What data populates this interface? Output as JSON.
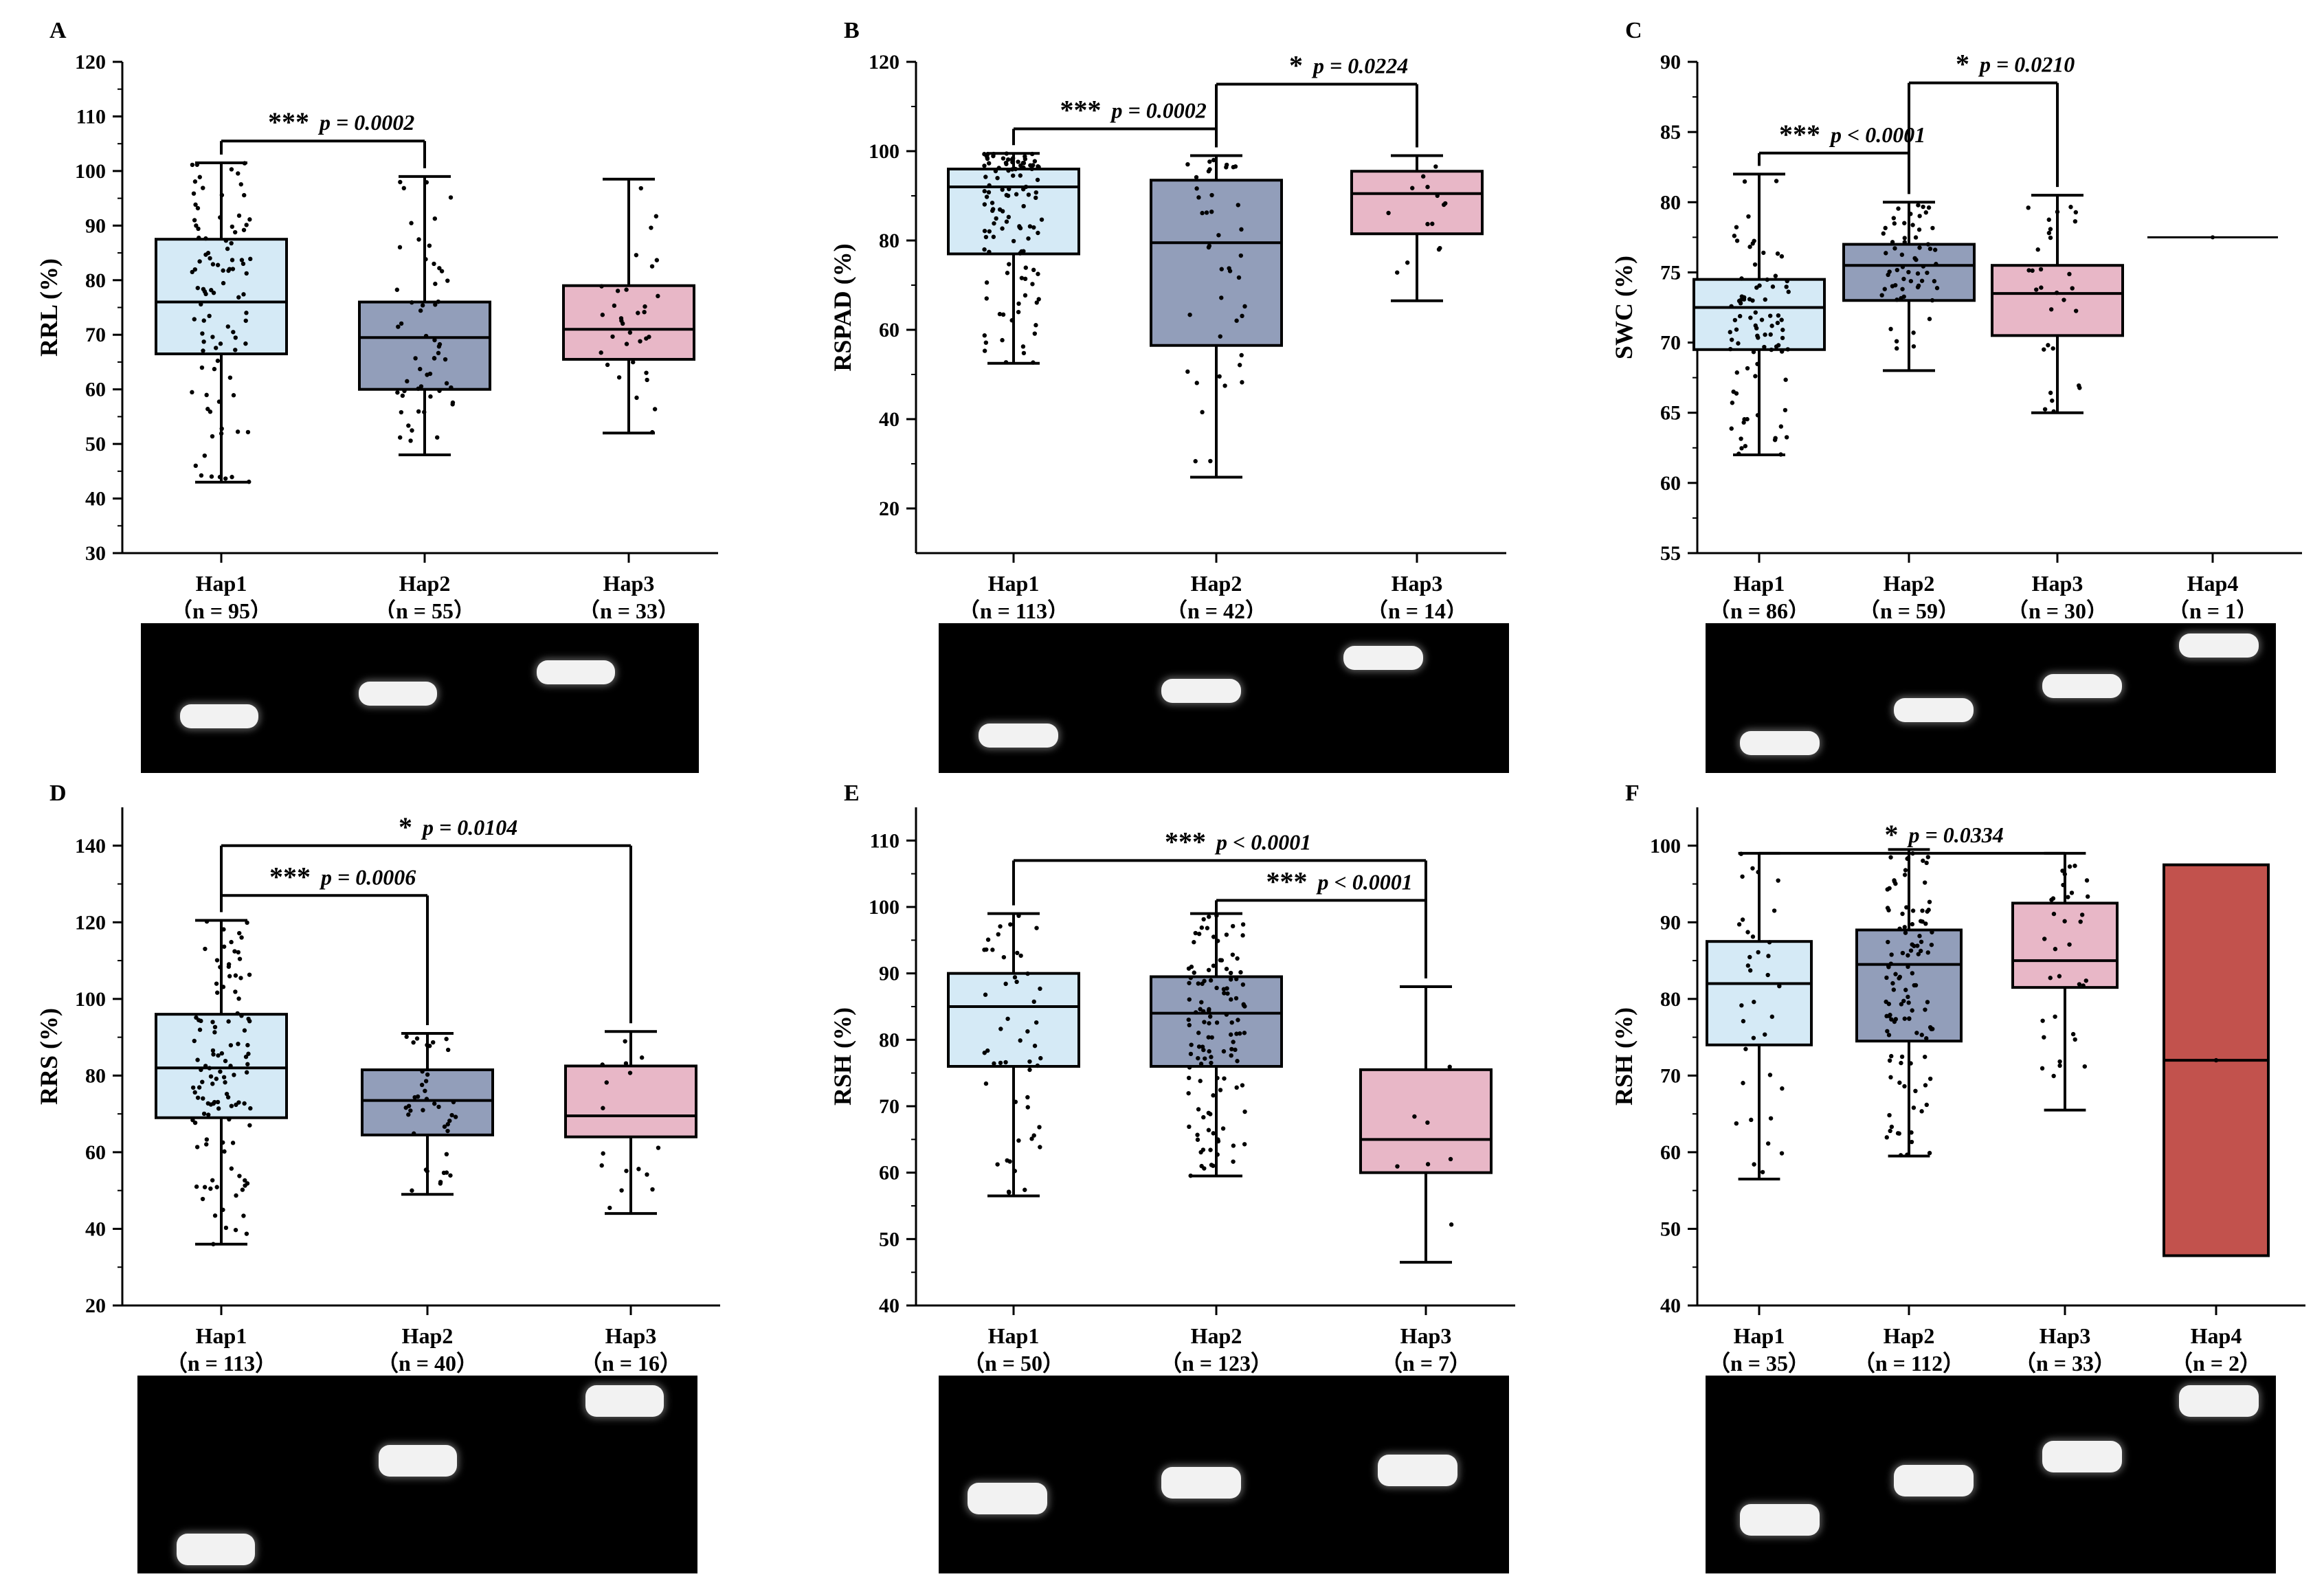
{
  "colors": {
    "hap1": "#d5eaf6",
    "hap2": "#929eba",
    "hap3": "#e8b7c7",
    "hap4": "#c2524d",
    "axis": "#000000",
    "gel_bg": "#000000",
    "band": "#f2f2f2"
  },
  "chart_data": [
    {
      "panel": "A",
      "type": "box",
      "ylabel": "RRL (%)",
      "ylim": [
        30,
        120
      ],
      "yticks": [
        30,
        40,
        50,
        60,
        70,
        80,
        90,
        100,
        110,
        120
      ],
      "categories": [
        "Hap1",
        "Hap2",
        "Hap3"
      ],
      "n_labels": [
        "（n = 95）",
        "（n = 55）",
        "（n = 33）"
      ],
      "boxes": [
        {
          "min": 43,
          "q1": 66.5,
          "median": 76,
          "q3": 87.5,
          "max": 101.5,
          "color": "hap1",
          "n": 95
        },
        {
          "min": 48,
          "q1": 60,
          "median": 69.5,
          "q3": 76,
          "max": 99,
          "color": "hap2",
          "n": 55
        },
        {
          "min": 52,
          "q1": 65.5,
          "median": 71,
          "q3": 79,
          "max": 98.5,
          "color": "hap3",
          "n": 33
        }
      ],
      "significance": [
        {
          "from": 0,
          "to": 1,
          "y": 105.5,
          "stars": "***",
          "p": "p = 0.0002"
        }
      ]
    },
    {
      "panel": "B",
      "type": "box",
      "ylabel": "RSPAD (%)",
      "ylim": [
        10,
        120
      ],
      "yticks": [
        20,
        40,
        60,
        80,
        100,
        120
      ],
      "categories": [
        "Hap1",
        "Hap2",
        "Hap3"
      ],
      "n_labels": [
        "（n = 113）",
        "（n = 42）",
        "（n = 14）"
      ],
      "boxes": [
        {
          "min": 52.5,
          "q1": 77,
          "median": 92,
          "q3": 96,
          "max": 99.5,
          "color": "hap1",
          "n": 113
        },
        {
          "min": 27,
          "q1": 56.5,
          "median": 79.5,
          "q3": 93.5,
          "max": 99,
          "color": "hap2",
          "n": 42
        },
        {
          "min": 66.5,
          "q1": 81.5,
          "median": 90.5,
          "q3": 95.5,
          "max": 99,
          "color": "hap3",
          "n": 14
        }
      ],
      "significance": [
        {
          "from": 0,
          "to": 1,
          "y": 105,
          "stars": "***",
          "p": "p = 0.0002"
        },
        {
          "from": 1,
          "to": 2,
          "y": 115,
          "stars": "*",
          "p": "p = 0.0224"
        }
      ]
    },
    {
      "panel": "C",
      "type": "box",
      "ylabel": "SWC (%)",
      "ylim": [
        55,
        90
      ],
      "yticks": [
        55,
        60,
        65,
        70,
        75,
        80,
        85,
        90
      ],
      "categories": [
        "Hap1",
        "Hap2",
        "Hap3",
        "Hap4"
      ],
      "n_labels": [
        "（n = 86）",
        "（n = 59）",
        "（n = 30）",
        "（n = 1）"
      ],
      "boxes": [
        {
          "min": 62,
          "q1": 69.5,
          "median": 72.5,
          "q3": 74.5,
          "max": 82,
          "color": "hap1",
          "n": 86
        },
        {
          "min": 68,
          "q1": 73,
          "median": 75.5,
          "q3": 77,
          "max": 80,
          "color": "hap2",
          "n": 59
        },
        {
          "min": 65,
          "q1": 70.5,
          "median": 73.5,
          "q3": 75.5,
          "max": 80.5,
          "color": "hap3",
          "n": 30
        },
        {
          "min": 77.5,
          "q1": 77.5,
          "median": 77.5,
          "q3": 77.5,
          "max": 77.5,
          "color": "hap4",
          "n": 1
        }
      ],
      "significance": [
        {
          "from": 0,
          "to": 1,
          "y": 83.5,
          "stars": "***",
          "p": "p < 0.0001"
        },
        {
          "from": 1,
          "to": 2,
          "y": 88.5,
          "stars": "*",
          "p": "p = 0.0210"
        }
      ]
    },
    {
      "panel": "D",
      "type": "box",
      "ylabel": "RRS (%)",
      "ylim": [
        20,
        150
      ],
      "yticks": [
        20,
        40,
        60,
        80,
        100,
        120,
        140
      ],
      "categories": [
        "Hap1",
        "Hap2",
        "Hap3"
      ],
      "n_labels": [
        "（n = 113）",
        "（n = 40）",
        "（n = 16）"
      ],
      "boxes": [
        {
          "min": 36,
          "q1": 69,
          "median": 82,
          "q3": 96,
          "max": 120.5,
          "color": "hap1",
          "n": 113
        },
        {
          "min": 49,
          "q1": 64.5,
          "median": 73.5,
          "q3": 81.5,
          "max": 91,
          "color": "hap2",
          "n": 40
        },
        {
          "min": 44,
          "q1": 64,
          "median": 69.5,
          "q3": 82.5,
          "max": 91.5,
          "color": "hap3",
          "n": 16
        }
      ],
      "significance": [
        {
          "from": 0,
          "to": 1,
          "y": 127,
          "stars": "***",
          "p": "p = 0.0006"
        },
        {
          "from": 0,
          "to": 2,
          "y": 140,
          "stars": "*",
          "p": "p = 0.0104"
        }
      ]
    },
    {
      "panel": "E",
      "type": "box",
      "ylabel": "RSH (%)",
      "ylim": [
        40,
        115
      ],
      "yticks": [
        40,
        50,
        60,
        70,
        80,
        90,
        100,
        110
      ],
      "categories": [
        "Hap1",
        "Hap2",
        "Hap3"
      ],
      "n_labels": [
        "（n = 50）",
        "（n = 123）",
        "（n = 7）"
      ],
      "boxes": [
        {
          "min": 56.5,
          "q1": 76,
          "median": 85,
          "q3": 90,
          "max": 99,
          "color": "hap1",
          "n": 50
        },
        {
          "min": 59.5,
          "q1": 76,
          "median": 84,
          "q3": 89.5,
          "max": 99,
          "color": "hap2",
          "n": 123
        },
        {
          "min": 46.5,
          "q1": 60,
          "median": 65,
          "q3": 75.5,
          "max": 88,
          "color": "hap3",
          "n": 7
        }
      ],
      "significance": [
        {
          "from": 0,
          "to": 2,
          "y": 107,
          "stars": "***",
          "p": "p < 0.0001"
        },
        {
          "from": 1,
          "to": 2,
          "y": 101,
          "stars": "***",
          "p": "p < 0.0001"
        }
      ]
    },
    {
      "panel": "F",
      "type": "box",
      "ylabel": "RSH (%)",
      "ylim": [
        40,
        105
      ],
      "yticks": [
        40,
        50,
        60,
        70,
        80,
        90,
        100
      ],
      "categories": [
        "Hap1",
        "Hap2",
        "Hap3",
        "Hap4"
      ],
      "n_labels": [
        "（n = 35）",
        "（n = 112）",
        "（n = 33）",
        "（n = 2）"
      ],
      "boxes": [
        {
          "min": 56.5,
          "q1": 74,
          "median": 82,
          "q3": 87.5,
          "max": 99,
          "color": "hap1",
          "n": 35
        },
        {
          "min": 59.5,
          "q1": 74.5,
          "median": 84.5,
          "q3": 89,
          "max": 99.5,
          "color": "hap2",
          "n": 112
        },
        {
          "min": 65.5,
          "q1": 81.5,
          "median": 85,
          "q3": 92.5,
          "max": 99,
          "color": "hap3",
          "n": 33
        },
        {
          "min": 46.5,
          "q1": 46.5,
          "median": 72,
          "q3": 97.5,
          "max": 97.5,
          "color": "hap4",
          "n": 2
        }
      ],
      "significance": [
        {
          "from": 0,
          "to": 2,
          "y": 99,
          "stars": "*",
          "p": "p = 0.0334"
        }
      ]
    }
  ],
  "gels": [
    {
      "panel": "A",
      "bands": [
        [
          0.14,
          0.62
        ],
        [
          0.46,
          0.47
        ],
        [
          0.78,
          0.33
        ]
      ]
    },
    {
      "panel": "B",
      "bands": [
        [
          0.14,
          0.75
        ],
        [
          0.46,
          0.45
        ],
        [
          0.78,
          0.23
        ]
      ]
    },
    {
      "panel": "C",
      "bands": [
        [
          0.13,
          0.8
        ],
        [
          0.4,
          0.58
        ],
        [
          0.66,
          0.42
        ],
        [
          0.9,
          0.15
        ]
      ]
    },
    {
      "panel": "D",
      "bands": [
        [
          0.14,
          0.88
        ],
        [
          0.5,
          0.43
        ],
        [
          0.87,
          0.13
        ]
      ]
    },
    {
      "panel": "E",
      "bands": [
        [
          0.12,
          0.62
        ],
        [
          0.46,
          0.54
        ],
        [
          0.84,
          0.48
        ]
      ]
    },
    {
      "panel": "F",
      "bands": [
        [
          0.13,
          0.73
        ],
        [
          0.4,
          0.53
        ],
        [
          0.66,
          0.41
        ],
        [
          0.9,
          0.13
        ]
      ]
    }
  ]
}
